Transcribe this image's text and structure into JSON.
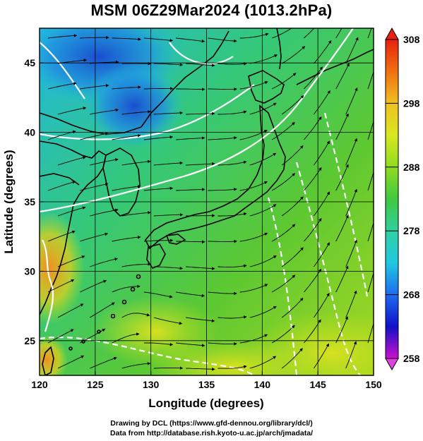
{
  "title": "MSM 06Z29Mar2024 (1013.2hPa)",
  "map": {
    "lon_range": [
      120,
      150
    ],
    "lat_range": [
      22.5,
      47.5
    ],
    "x_axis": {
      "label": "Longitude (degrees)",
      "ticks": [
        120,
        125,
        130,
        135,
        140,
        145,
        150
      ],
      "tick_labels": [
        "120",
        "125",
        "130",
        "135",
        "140",
        "145",
        "150"
      ]
    },
    "y_axis": {
      "label": "Latitude  (degrees)",
      "ticks": [
        25,
        30,
        35,
        40,
        45
      ],
      "tick_labels": [
        "25",
        "30",
        "35",
        "40",
        "45"
      ]
    },
    "grid": true,
    "field": "temperature shading with streamlines and white contour lines",
    "colors": {
      "cold_blue": "#1e5bd8",
      "cyan": "#20c8e0",
      "green": "#3cc83c",
      "yellow_green": "#b8e020",
      "orange": "#f0a020",
      "land_line": "#000000",
      "contour": "#ffffff"
    }
  },
  "colorbar": {
    "range": [
      258,
      308
    ],
    "tick_values": [
      258,
      268,
      278,
      288,
      298,
      308
    ],
    "tick_labels": [
      "258",
      "268",
      "278",
      "288",
      "298",
      "308"
    ],
    "colors": [
      "#cc10cc",
      "#1010c8",
      "#1e6cf0",
      "#20c8e0",
      "#30d0a0",
      "#40c840",
      "#90dc20",
      "#d8e820",
      "#f0c020",
      "#f07010",
      "#e82010"
    ]
  },
  "credits": {
    "line1": "Drawing by DCL (https://www.gfd-dennou.org/library/dcl/)",
    "line2": "Data from http://database.rish.kyoto-u.ac.jp/arch/jmadata/"
  }
}
